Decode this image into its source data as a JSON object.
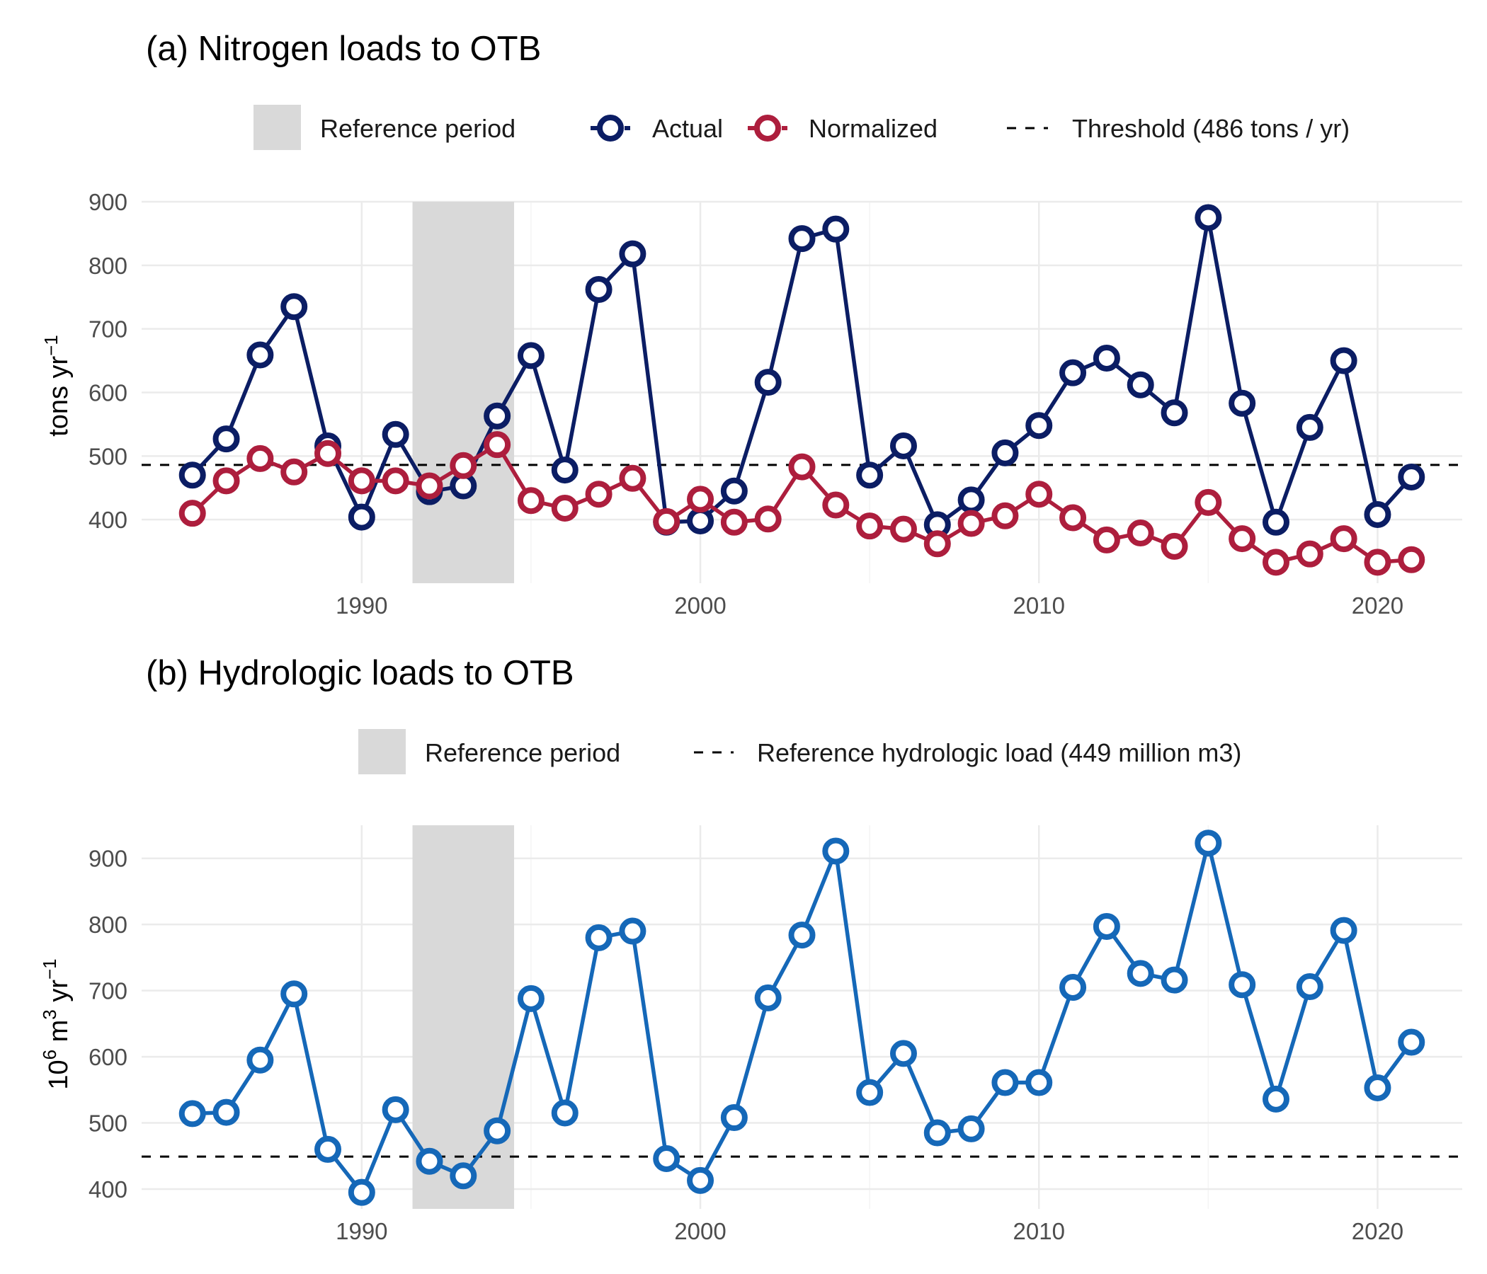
{
  "chart_data": [
    {
      "type": "line",
      "title": "(a) Nitrogen loads to OTB",
      "ylabel": "tons yr⁻¹",
      "xlim": [
        1983.5,
        2022.5
      ],
      "ylim": [
        300,
        900
      ],
      "xticks": [
        "1990",
        "2000",
        "2010",
        "2020"
      ],
      "yticks": [
        "400",
        "500",
        "600",
        "700",
        "800",
        "900"
      ],
      "grid": true,
      "legend_position": "top",
      "reference_period": {
        "label": "Reference period",
        "start": 1991.5,
        "end": 1994.5
      },
      "threshold": {
        "label": "Threshold (486 tons / yr)",
        "value": 486
      },
      "x": [
        1985,
        1986,
        1987,
        1988,
        1989,
        1990,
        1991,
        1992,
        1993,
        1994,
        1995,
        1996,
        1997,
        1998,
        1999,
        2000,
        2001,
        2002,
        2003,
        2004,
        2005,
        2006,
        2007,
        2008,
        2009,
        2010,
        2011,
        2012,
        2013,
        2014,
        2015,
        2016,
        2017,
        2018,
        2019,
        2020,
        2021
      ],
      "series": [
        {
          "name": "Actual",
          "color": "#0b1d64",
          "values": [
            470,
            527,
            659,
            735,
            516,
            404,
            534,
            444,
            453,
            563,
            658,
            478,
            762,
            818,
            396,
            398,
            445,
            616,
            842,
            857,
            470,
            516,
            392,
            431,
            505,
            548,
            631,
            654,
            612,
            568,
            875,
            583,
            396,
            545,
            650,
            408,
            467
          ]
        },
        {
          "name": "Normalized",
          "color": "#ad1e3d",
          "values": [
            410,
            461,
            496,
            475,
            504,
            461,
            461,
            453,
            485,
            518,
            430,
            418,
            440,
            465,
            397,
            432,
            396,
            401,
            483,
            423,
            390,
            385,
            362,
            394,
            406,
            440,
            403,
            368,
            379,
            358,
            427,
            370,
            333,
            346,
            370,
            333,
            337
          ]
        }
      ]
    },
    {
      "type": "line",
      "title": "(b) Hydrologic loads to OTB",
      "ylabel": "10⁶ m³ yr⁻¹",
      "xlim": [
        1983.5,
        2022.5
      ],
      "ylim": [
        370,
        950
      ],
      "xticks": [
        "1990",
        "2000",
        "2010",
        "2020"
      ],
      "yticks": [
        "400",
        "500",
        "600",
        "700",
        "800",
        "900"
      ],
      "grid": true,
      "legend_position": "top",
      "reference_period": {
        "label": "Reference period",
        "start": 1991.5,
        "end": 1994.5
      },
      "threshold": {
        "label": "Reference hydrologic load (449 million m3)",
        "value": 449
      },
      "x": [
        1985,
        1986,
        1987,
        1988,
        1989,
        1990,
        1991,
        1992,
        1993,
        1994,
        1995,
        1996,
        1997,
        1998,
        1999,
        2000,
        2001,
        2002,
        2003,
        2004,
        2005,
        2006,
        2007,
        2008,
        2009,
        2010,
        2011,
        2012,
        2013,
        2014,
        2015,
        2016,
        2017,
        2018,
        2019,
        2020,
        2021
      ],
      "series": [
        {
          "color": "#1568b8",
          "values": [
            514,
            516,
            595,
            695,
            460,
            395,
            520,
            442,
            420,
            488,
            688,
            515,
            780,
            790,
            446,
            413,
            508,
            689,
            784,
            911,
            546,
            605,
            485,
            491,
            561,
            561,
            705,
            797,
            726,
            716,
            923,
            709,
            536,
            706,
            791,
            553,
            622
          ]
        }
      ]
    }
  ]
}
